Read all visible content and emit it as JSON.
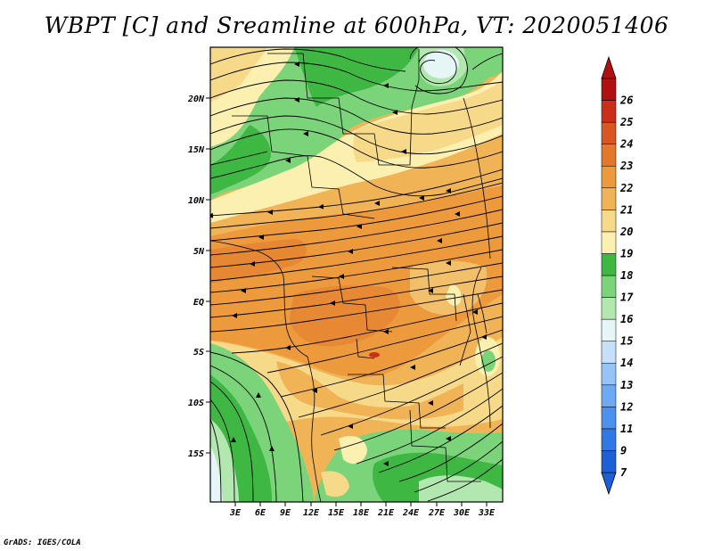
{
  "title": "WBPT [C] and Sreamline at 600hPa, VT: 2020051406",
  "footer": "GrADS: IGES/COLA",
  "map": {
    "lat_labels": [
      "20N",
      "15N",
      "10N",
      "5N",
      "EQ",
      "5S",
      "10S",
      "15S"
    ],
    "lon_labels": [
      "3E",
      "6E",
      "9E",
      "12E",
      "15E",
      "18E",
      "21E",
      "24E",
      "27E",
      "30E",
      "33E"
    ]
  },
  "colorbar": {
    "labels": [
      "7",
      "9",
      "11",
      "12",
      "13",
      "14",
      "15",
      "16",
      "17",
      "18",
      "19",
      "20",
      "21",
      "22",
      "23",
      "24",
      "25",
      "26"
    ],
    "colors": [
      "#1c5fd6",
      "#2f78e6",
      "#4c91ee",
      "#6fa9f3",
      "#97c4f7",
      "#c6e0fb",
      "#e6f5f5",
      "#b2e8b0",
      "#7cd47a",
      "#3fb843",
      "#fbf0b0",
      "#f7d98a",
      "#f0b457",
      "#ec9a3c",
      "#e2782b",
      "#d95522",
      "#cc2f19",
      "#b01010"
    ]
  }
}
